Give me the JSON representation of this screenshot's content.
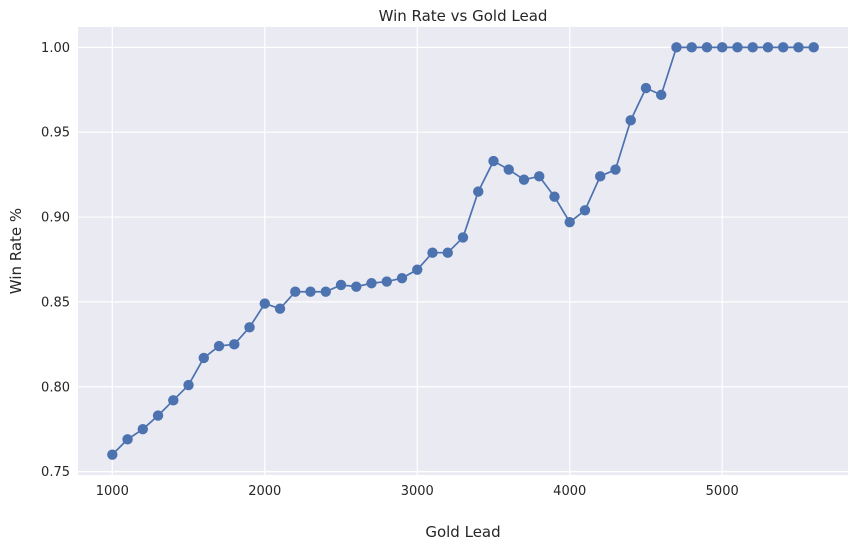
{
  "chart_data": {
    "type": "line",
    "title": "Win Rate vs Gold Lead",
    "xlabel": "Gold Lead",
    "ylabel": "Win Rate %",
    "xlim": [
      775,
      5825
    ],
    "ylim": [
      0.748,
      1.012
    ],
    "xticks": [
      1000,
      2000,
      3000,
      4000,
      5000
    ],
    "yticks": [
      0.75,
      0.8,
      0.85,
      0.9,
      0.95,
      1.0
    ],
    "xtick_labels": [
      "1000",
      "2000",
      "3000",
      "4000",
      "5000"
    ],
    "ytick_labels": [
      "0.75",
      "0.80",
      "0.85",
      "0.90",
      "0.95",
      "1.00"
    ],
    "grid": true,
    "series": [
      {
        "color": "#4c72b0",
        "marker": "circle",
        "x": [
          1000,
          1100,
          1200,
          1300,
          1400,
          1500,
          1600,
          1700,
          1800,
          1900,
          2000,
          2100,
          2200,
          2300,
          2400,
          2500,
          2600,
          2700,
          2800,
          2900,
          3000,
          3100,
          3200,
          3300,
          3400,
          3500,
          3600,
          3700,
          3800,
          3900,
          4000,
          4100,
          4200,
          4300,
          4400,
          4500,
          4600,
          4700,
          4800,
          4900,
          5000,
          5100,
          5200,
          5300,
          5400,
          5500,
          5600
        ],
        "y": [
          0.76,
          0.769,
          0.775,
          0.783,
          0.792,
          0.801,
          0.817,
          0.824,
          0.825,
          0.835,
          0.849,
          0.846,
          0.856,
          0.856,
          0.856,
          0.86,
          0.859,
          0.861,
          0.862,
          0.864,
          0.869,
          0.879,
          0.879,
          0.888,
          0.915,
          0.933,
          0.928,
          0.922,
          0.924,
          0.912,
          0.897,
          0.904,
          0.924,
          0.928,
          0.957,
          0.976,
          0.972,
          1.0,
          1.0,
          1.0,
          1.0,
          1.0,
          1.0,
          1.0,
          1.0,
          1.0,
          1.0
        ]
      }
    ]
  }
}
